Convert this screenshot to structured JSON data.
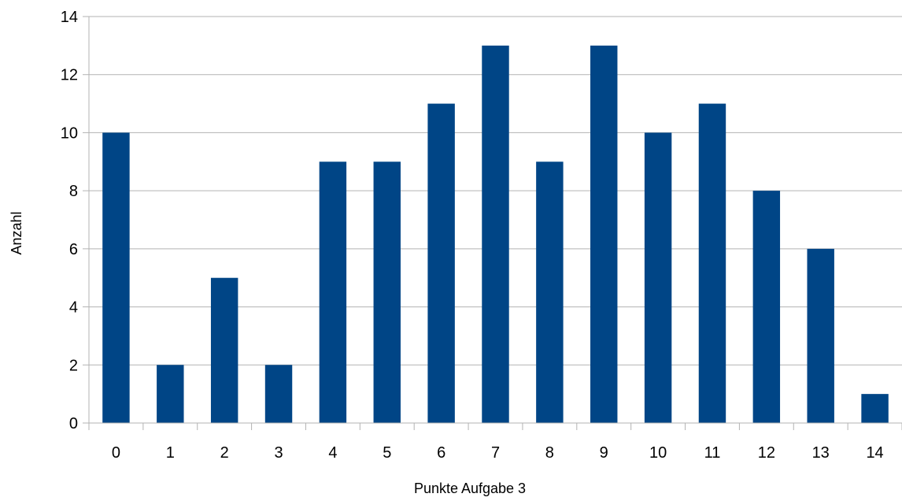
{
  "chart_data": {
    "type": "bar",
    "categories": [
      "0",
      "1",
      "2",
      "3",
      "4",
      "5",
      "6",
      "7",
      "8",
      "9",
      "10",
      "11",
      "12",
      "13",
      "14"
    ],
    "values": [
      10,
      2,
      5,
      2,
      9,
      9,
      11,
      13,
      9,
      13,
      10,
      11,
      8,
      6,
      1
    ],
    "xlabel": "Punkte Aufgabe 3",
    "ylabel": "Anzahl",
    "ylim": [
      0,
      14
    ],
    "yticks": [
      "0",
      "2",
      "4",
      "6",
      "8",
      "10",
      "12",
      "14"
    ],
    "grid": true,
    "legend": "none",
    "bar_color": "#004586",
    "grid_color": "#b3b3b3",
    "axis_color": "#b3b3b3"
  }
}
